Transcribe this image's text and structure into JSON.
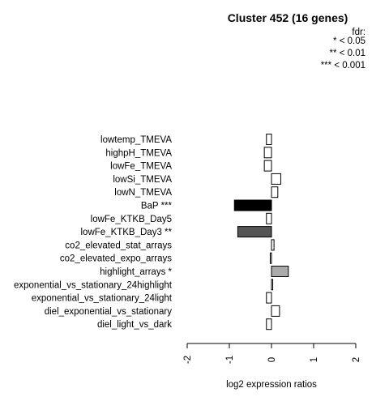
{
  "chart_data": {
    "type": "bar",
    "orientation": "horizontal",
    "title": "Cluster 452 (16 genes)",
    "xlabel": "log2 expression ratios",
    "ylabel": "",
    "xlim": [
      -2,
      2
    ],
    "xticks": [
      "-2",
      "-1",
      "0",
      "1",
      "2"
    ],
    "legend": {
      "title": "fdr:",
      "entries": [
        "* < 0.05",
        "** < 0.01",
        "*** < 0.001"
      ],
      "placement": "top-right"
    },
    "categories": [
      "lowtemp_TMEVA",
      "highpH_TMEVA",
      "lowFe_TMEVA",
      "lowSi_TMEVA",
      "lowN_TMEVA",
      "BaP ***",
      "lowFe_KTKB_Day5",
      "lowFe_KTKB_Day3 **",
      "co2_elevated_stat_arrays",
      "co2_elevated_expo_arrays",
      "highlight_arrays *",
      "exponential_vs_stationary_24highlight",
      "exponential_vs_stationary_24light",
      "diel_exponential_vs_stationary",
      "diel_light_vs_dark"
    ],
    "values": [
      -0.12,
      -0.17,
      -0.17,
      0.22,
      0.15,
      -0.88,
      -0.12,
      -0.8,
      0.06,
      -0.03,
      0.4,
      0.03,
      -0.12,
      0.19,
      -0.12
    ],
    "colors": [
      "#ffffff",
      "#ffffff",
      "#ffffff",
      "#ffffff",
      "#ffffff",
      "#000000",
      "#ffffff",
      "#555555",
      "#ffffff",
      "#ffffff",
      "#aaaaaa",
      "#ffffff",
      "#ffffff",
      "#ffffff",
      "#ffffff"
    ]
  }
}
